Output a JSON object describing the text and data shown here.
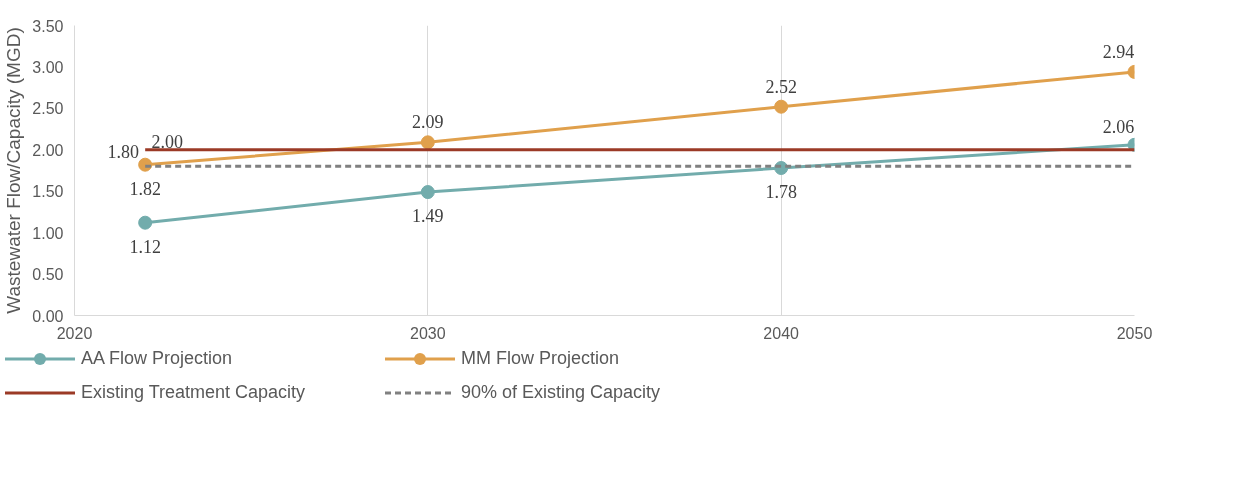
{
  "chart_data": {
    "type": "line",
    "ylabel": "Wastewater Flow/Capacity (MGD)",
    "x": [
      2022,
      2030,
      2040,
      2050
    ],
    "xlim": [
      2020,
      2050
    ],
    "xticks": [
      2020,
      2030,
      2040,
      2050
    ],
    "ylim": [
      0,
      3.5
    ],
    "yticks": [
      {
        "value": 0,
        "label": "0.00"
      },
      {
        "value": 0.5,
        "label": "0.50"
      },
      {
        "value": 1,
        "label": "1.00"
      },
      {
        "value": 1.5,
        "label": "1.50"
      },
      {
        "value": 2,
        "label": "2.00"
      },
      {
        "value": 2.5,
        "label": "2.50"
      },
      {
        "value": 3,
        "label": "3.00"
      },
      {
        "value": 3.5,
        "label": "3.50"
      }
    ],
    "grid": "x",
    "legend": "bottom",
    "series": [
      {
        "name": "AA Flow Projection",
        "color": "#72acac",
        "values": [
          1.12,
          1.49,
          1.78,
          2.06
        ],
        "marker": "circle",
        "line_style": "solid",
        "value_labels": [
          "1.12",
          "1.49",
          "1.78",
          "2.06"
        ]
      },
      {
        "name": "MM Flow Projection",
        "color": "#e0a04c",
        "values": [
          1.82,
          2.09,
          2.52,
          2.94
        ],
        "marker": "circle",
        "line_style": "solid",
        "value_labels": [
          "1.82",
          "2.09",
          "2.52",
          "2.94"
        ]
      },
      {
        "name": "Existing Treatment Capacity",
        "color": "#9b3a26",
        "values": [
          2.0,
          2.0,
          2.0,
          2.0
        ],
        "marker": "none",
        "line_style": "solid",
        "value_labels": [
          "2.00",
          null,
          null,
          null
        ]
      },
      {
        "name": "90% of Existing Capacity",
        "color": "#808080",
        "values": [
          1.8,
          1.8,
          1.8,
          1.8
        ],
        "marker": "none",
        "line_style": "dashed",
        "value_labels": [
          "1.80",
          null,
          null,
          null
        ]
      }
    ]
  }
}
